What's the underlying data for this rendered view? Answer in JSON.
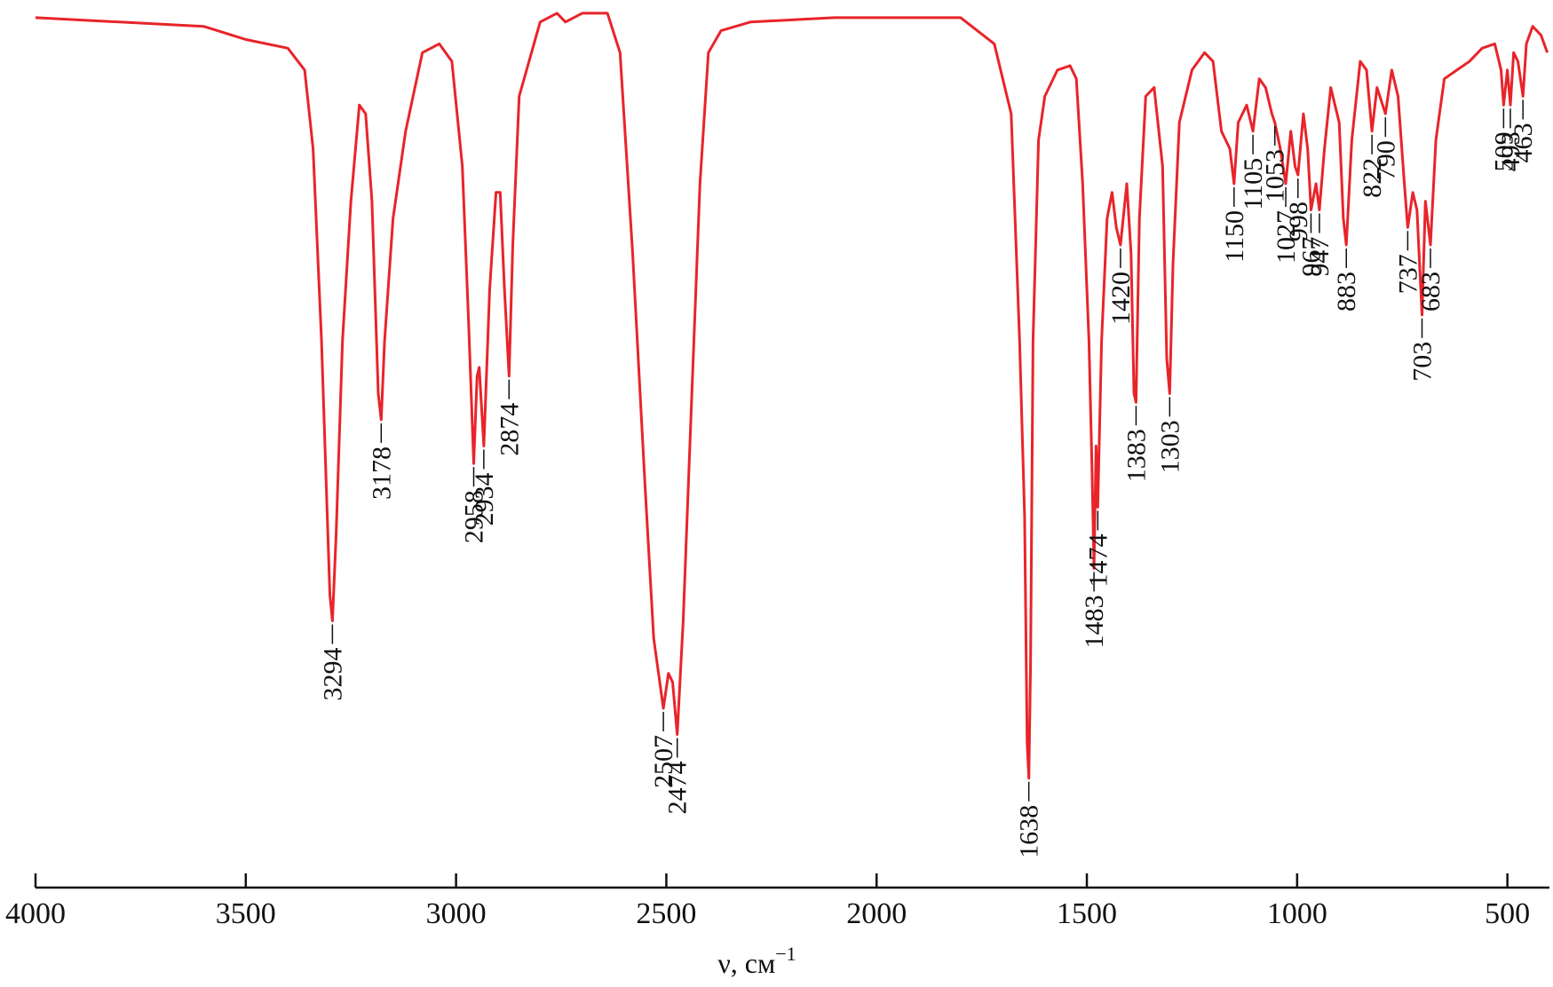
{
  "chart_data": {
    "type": "line",
    "title": "",
    "xlabel": "ν, см",
    "xlabel_sup": "−1",
    "ylabel": "",
    "x_reversed": true,
    "xlim": [
      4000,
      400
    ],
    "ylim": [
      0,
      1
    ],
    "grid": false,
    "x_ticks": [
      {
        "value": 4000,
        "label": "4000"
      },
      {
        "value": 3500,
        "label": "3500"
      },
      {
        "value": 3000,
        "label": "3000"
      },
      {
        "value": 2500,
        "label": "2500"
      },
      {
        "value": 2000,
        "label": "2000"
      },
      {
        "value": 1500,
        "label": "1500"
      },
      {
        "value": 1000,
        "label": "1000"
      },
      {
        "value": 500,
        "label": "500"
      }
    ],
    "series": [
      {
        "color": "#e8242a",
        "points": [
          [
            4000,
            0.99
          ],
          [
            3800,
            0.985
          ],
          [
            3600,
            0.98
          ],
          [
            3500,
            0.965
          ],
          [
            3400,
            0.955
          ],
          [
            3360,
            0.93
          ],
          [
            3340,
            0.84
          ],
          [
            3320,
            0.62
          ],
          [
            3300,
            0.33
          ],
          [
            3294,
            0.3
          ],
          [
            3285,
            0.4
          ],
          [
            3270,
            0.62
          ],
          [
            3250,
            0.78
          ],
          [
            3230,
            0.89
          ],
          [
            3215,
            0.88
          ],
          [
            3200,
            0.78
          ],
          [
            3185,
            0.56
          ],
          [
            3178,
            0.53
          ],
          [
            3170,
            0.62
          ],
          [
            3150,
            0.76
          ],
          [
            3120,
            0.86
          ],
          [
            3080,
            0.95
          ],
          [
            3040,
            0.96
          ],
          [
            3010,
            0.94
          ],
          [
            2985,
            0.82
          ],
          [
            2970,
            0.64
          ],
          [
            2958,
            0.48
          ],
          [
            2950,
            0.58
          ],
          [
            2945,
            0.59
          ],
          [
            2934,
            0.5
          ],
          [
            2920,
            0.68
          ],
          [
            2905,
            0.79
          ],
          [
            2895,
            0.79
          ],
          [
            2885,
            0.68
          ],
          [
            2874,
            0.58
          ],
          [
            2865,
            0.73
          ],
          [
            2850,
            0.9
          ],
          [
            2800,
            0.985
          ],
          [
            2760,
            0.995
          ],
          [
            2740,
            0.985
          ],
          [
            2700,
            0.995
          ],
          [
            2640,
            0.995
          ],
          [
            2610,
            0.95
          ],
          [
            2580,
            0.72
          ],
          [
            2550,
            0.45
          ],
          [
            2530,
            0.28
          ],
          [
            2507,
            0.2
          ],
          [
            2495,
            0.24
          ],
          [
            2485,
            0.23
          ],
          [
            2474,
            0.17
          ],
          [
            2460,
            0.3
          ],
          [
            2440,
            0.55
          ],
          [
            2420,
            0.8
          ],
          [
            2400,
            0.95
          ],
          [
            2370,
            0.975
          ],
          [
            2300,
            0.985
          ],
          [
            2100,
            0.99
          ],
          [
            1900,
            0.99
          ],
          [
            1800,
            0.99
          ],
          [
            1720,
            0.96
          ],
          [
            1680,
            0.88
          ],
          [
            1660,
            0.62
          ],
          [
            1648,
            0.42
          ],
          [
            1642,
            0.16
          ],
          [
            1638,
            0.12
          ],
          [
            1634,
            0.25
          ],
          [
            1628,
            0.62
          ],
          [
            1615,
            0.85
          ],
          [
            1600,
            0.9
          ],
          [
            1570,
            0.93
          ],
          [
            1540,
            0.935
          ],
          [
            1525,
            0.92
          ],
          [
            1510,
            0.8
          ],
          [
            1495,
            0.62
          ],
          [
            1488,
            0.48
          ],
          [
            1483,
            0.36
          ],
          [
            1478,
            0.5
          ],
          [
            1474,
            0.43
          ],
          [
            1465,
            0.62
          ],
          [
            1452,
            0.76
          ],
          [
            1440,
            0.79
          ],
          [
            1430,
            0.75
          ],
          [
            1420,
            0.73
          ],
          [
            1405,
            0.8
          ],
          [
            1395,
            0.72
          ],
          [
            1388,
            0.56
          ],
          [
            1383,
            0.55
          ],
          [
            1375,
            0.76
          ],
          [
            1360,
            0.9
          ],
          [
            1340,
            0.91
          ],
          [
            1320,
            0.82
          ],
          [
            1310,
            0.6
          ],
          [
            1303,
            0.56
          ],
          [
            1295,
            0.71
          ],
          [
            1280,
            0.87
          ],
          [
            1250,
            0.93
          ],
          [
            1220,
            0.95
          ],
          [
            1200,
            0.94
          ],
          [
            1180,
            0.86
          ],
          [
            1160,
            0.84
          ],
          [
            1150,
            0.8
          ],
          [
            1140,
            0.87
          ],
          [
            1120,
            0.89
          ],
          [
            1105,
            0.86
          ],
          [
            1090,
            0.92
          ],
          [
            1075,
            0.91
          ],
          [
            1060,
            0.88
          ],
          [
            1053,
            0.87
          ],
          [
            1040,
            0.84
          ],
          [
            1027,
            0.8
          ],
          [
            1015,
            0.86
          ],
          [
            1005,
            0.82
          ],
          [
            998,
            0.81
          ],
          [
            985,
            0.88
          ],
          [
            975,
            0.84
          ],
          [
            967,
            0.77
          ],
          [
            955,
            0.8
          ],
          [
            947,
            0.77
          ],
          [
            935,
            0.84
          ],
          [
            920,
            0.91
          ],
          [
            900,
            0.87
          ],
          [
            890,
            0.76
          ],
          [
            883,
            0.73
          ],
          [
            870,
            0.85
          ],
          [
            850,
            0.94
          ],
          [
            835,
            0.93
          ],
          [
            822,
            0.86
          ],
          [
            810,
            0.91
          ],
          [
            790,
            0.88
          ],
          [
            775,
            0.93
          ],
          [
            760,
            0.9
          ],
          [
            745,
            0.8
          ],
          [
            737,
            0.75
          ],
          [
            725,
            0.79
          ],
          [
            715,
            0.77
          ],
          [
            703,
            0.65
          ],
          [
            695,
            0.78
          ],
          [
            683,
            0.73
          ],
          [
            670,
            0.85
          ],
          [
            650,
            0.92
          ],
          [
            620,
            0.93
          ],
          [
            590,
            0.94
          ],
          [
            560,
            0.955
          ],
          [
            530,
            0.96
          ],
          [
            515,
            0.93
          ],
          [
            509,
            0.89
          ],
          [
            500,
            0.93
          ],
          [
            493,
            0.89
          ],
          [
            485,
            0.95
          ],
          [
            475,
            0.94
          ],
          [
            463,
            0.9
          ],
          [
            455,
            0.96
          ],
          [
            440,
            0.98
          ],
          [
            420,
            0.97
          ],
          [
            405,
            0.95
          ]
        ]
      }
    ],
    "peak_labels": [
      {
        "x": 3294,
        "label": "3294",
        "y": 0.3
      },
      {
        "x": 3178,
        "label": "3178",
        "y": 0.53
      },
      {
        "x": 2958,
        "label": "2958",
        "y": 0.48
      },
      {
        "x": 2934,
        "label": "2934",
        "y": 0.5
      },
      {
        "x": 2874,
        "label": "2874",
        "y": 0.58
      },
      {
        "x": 2507,
        "label": "2507",
        "y": 0.2
      },
      {
        "x": 2474,
        "label": "2474",
        "y": 0.17
      },
      {
        "x": 1638,
        "label": "1638",
        "y": 0.12
      },
      {
        "x": 1483,
        "label": "1483",
        "y": 0.36
      },
      {
        "x": 1474,
        "label": "1474",
        "y": 0.43
      },
      {
        "x": 1420,
        "label": "1420",
        "y": 0.73
      },
      {
        "x": 1383,
        "label": "1383",
        "y": 0.55
      },
      {
        "x": 1303,
        "label": "1303",
        "y": 0.56
      },
      {
        "x": 1150,
        "label": "1150",
        "y": 0.8
      },
      {
        "x": 1105,
        "label": "1105",
        "y": 0.86
      },
      {
        "x": 1053,
        "label": "1053",
        "y": 0.87
      },
      {
        "x": 1027,
        "label": "1027",
        "y": 0.8
      },
      {
        "x": 998,
        "label": "998",
        "y": 0.81
      },
      {
        "x": 967,
        "label": "967",
        "y": 0.77
      },
      {
        "x": 947,
        "label": "947",
        "y": 0.77
      },
      {
        "x": 883,
        "label": "883",
        "y": 0.73
      },
      {
        "x": 822,
        "label": "822",
        "y": 0.86
      },
      {
        "x": 790,
        "label": "790",
        "y": 0.88
      },
      {
        "x": 737,
        "label": "737",
        "y": 0.75
      },
      {
        "x": 703,
        "label": "703",
        "y": 0.65
      },
      {
        "x": 683,
        "label": "683",
        "y": 0.73
      },
      {
        "x": 509,
        "label": "509",
        "y": 0.89
      },
      {
        "x": 493,
        "label": "493",
        "y": 0.89
      },
      {
        "x": 463,
        "label": "463",
        "y": 0.9
      }
    ]
  }
}
